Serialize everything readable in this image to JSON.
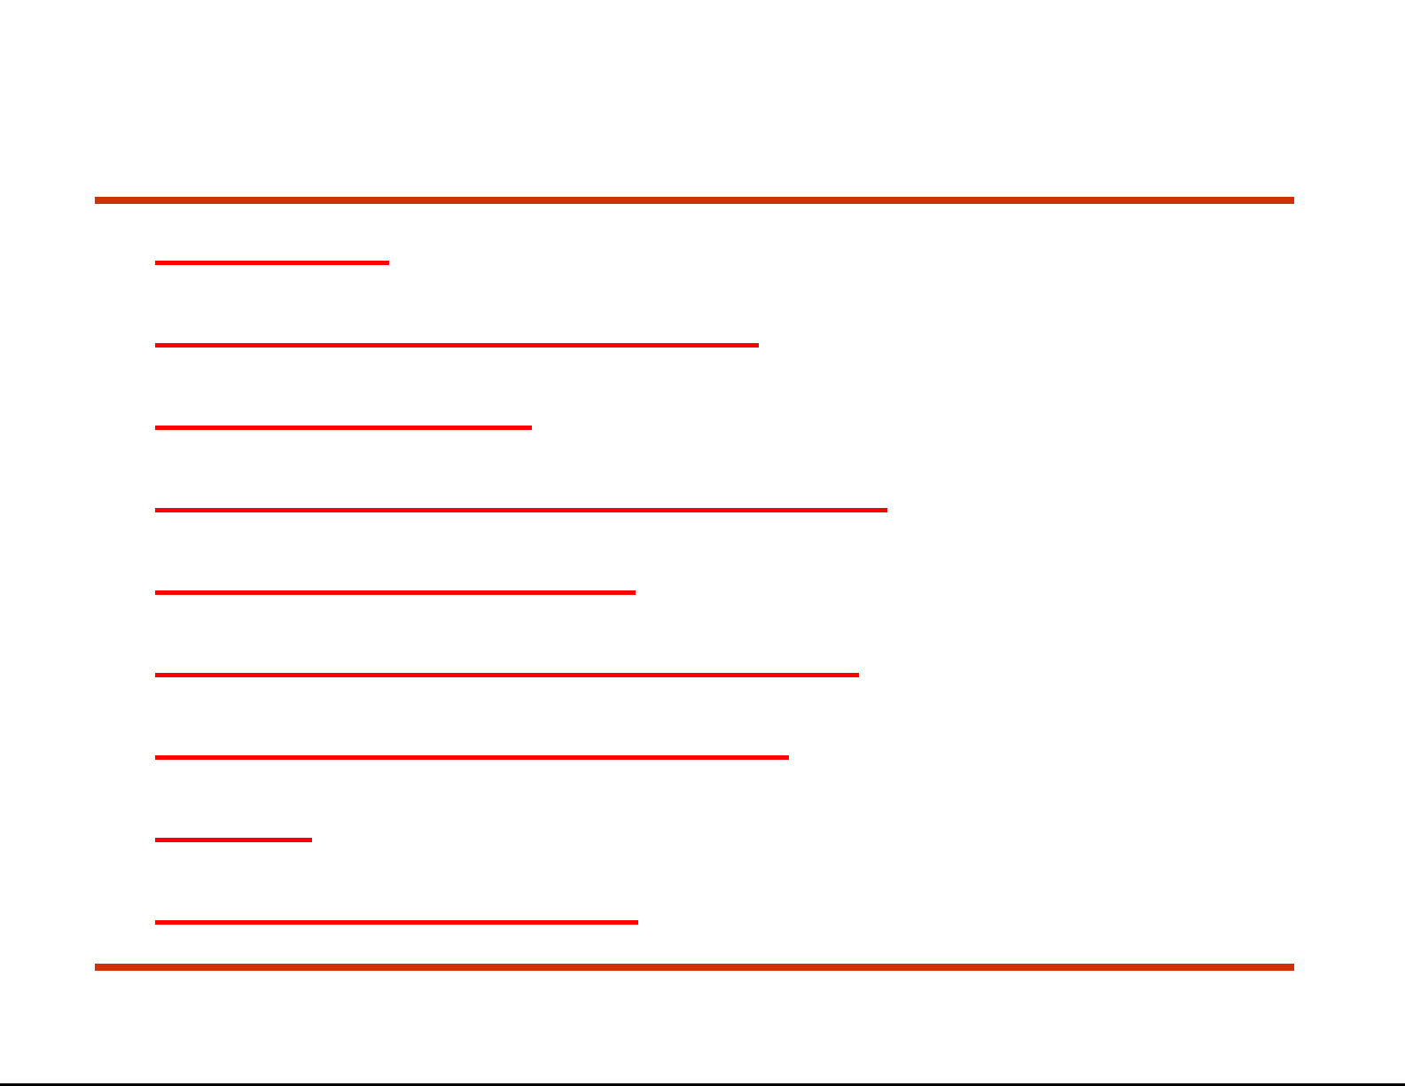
{
  "colors": {
    "rule": "#cc3300",
    "link_underline": "#ff0000",
    "background": "#ffffff"
  },
  "links": [
    {
      "label": ""
    },
    {
      "label": ""
    },
    {
      "label": ""
    },
    {
      "label": ""
    },
    {
      "label": ""
    },
    {
      "label": ""
    },
    {
      "label": ""
    },
    {
      "label": ""
    },
    {
      "label": ""
    }
  ]
}
